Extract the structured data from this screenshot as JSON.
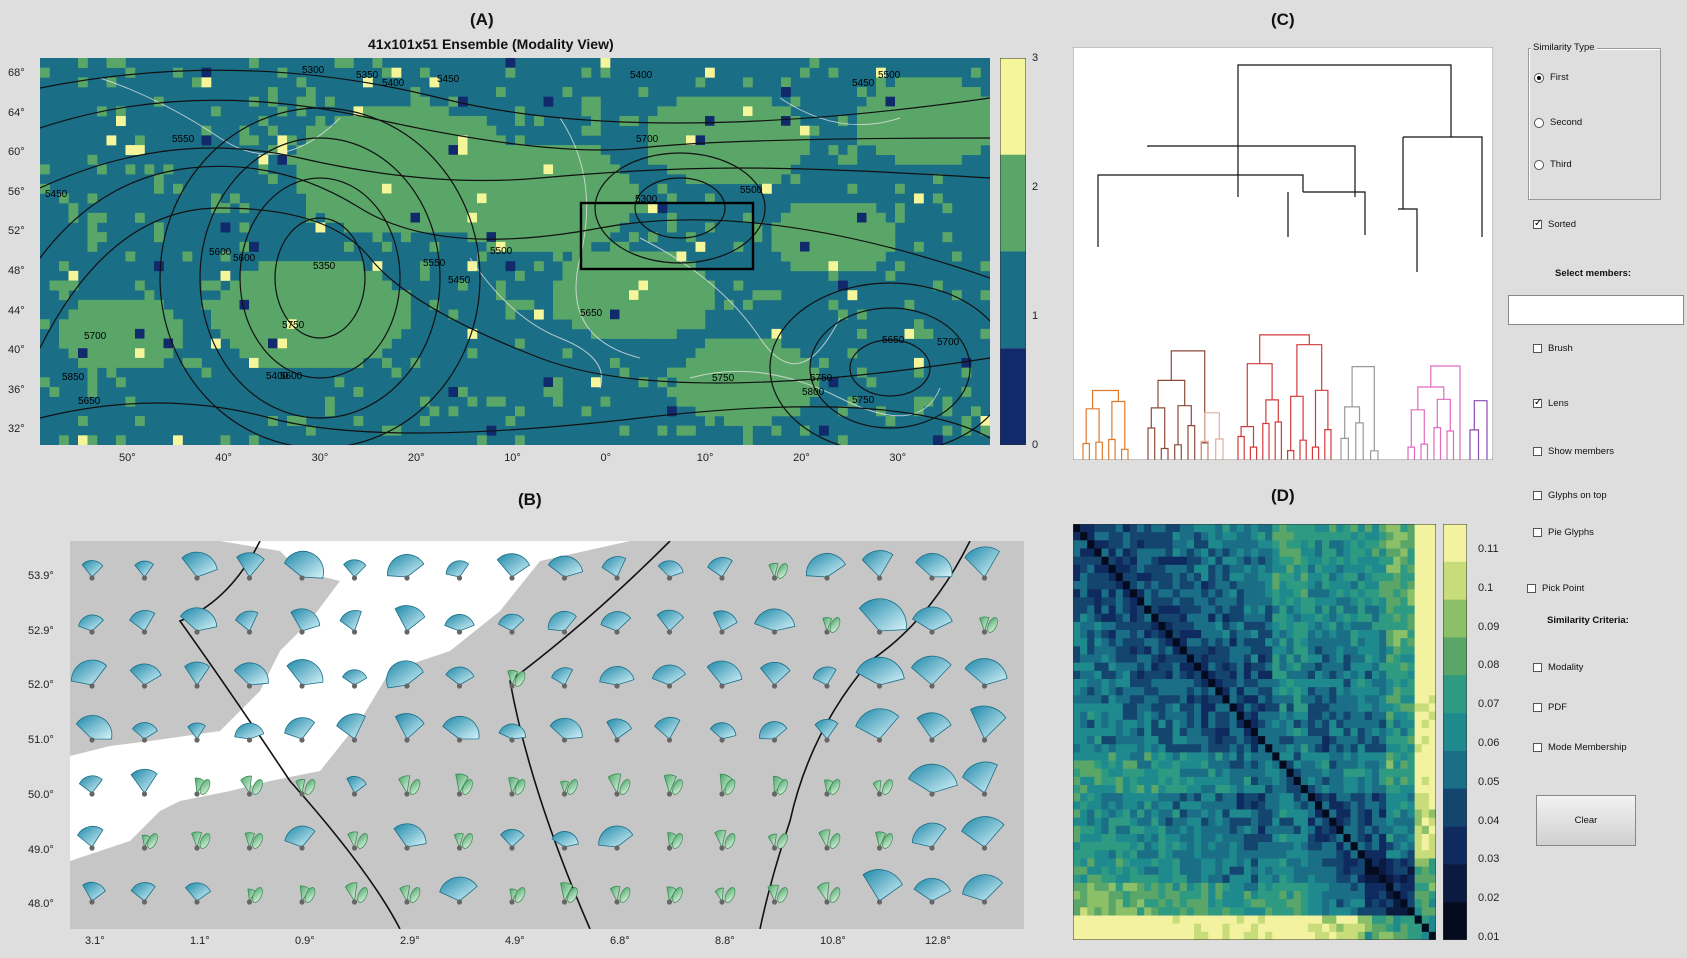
{
  "panels": {
    "a_label": "(A)",
    "b_label": "(B)",
    "c_label": "(C)",
    "d_label": "(D)",
    "a_title": "41x101x51 Ensemble (Modality View)"
  },
  "map_a": {
    "lat_ticks": [
      "68°",
      "64°",
      "60°",
      "56°",
      "52°",
      "48°",
      "44°",
      "40°",
      "36°",
      "32°"
    ],
    "lon_ticks": [
      "50°",
      "40°",
      "30°",
      "20°",
      "10°",
      "0°",
      "10°",
      "20°",
      "30°"
    ],
    "colorbar_ticks": [
      "3",
      "2",
      "1",
      "0"
    ],
    "modality_colors": [
      "#112a6b",
      "#1a6e86",
      "#5aa668",
      "#f5f59a"
    ],
    "contour_labels": [
      "5300",
      "5350",
      "5400",
      "5450",
      "5550",
      "5450",
      "5400",
      "5450",
      "5500",
      "5600",
      "5550",
      "5350",
      "5600",
      "5750",
      "5500",
      "5650",
      "5700",
      "5300",
      "5500",
      "5450",
      "5400",
      "5750",
      "5800",
      "5650",
      "5700",
      "5750",
      "5850",
      "5650",
      "5700",
      "5600",
      "5750"
    ]
  },
  "map_b": {
    "lat_ticks": [
      "53.9°",
      "52.9°",
      "52.0°",
      "51.0°",
      "50.0°",
      "49.0°",
      "48.0°"
    ],
    "lon_ticks": [
      "3.1°",
      "1.1°",
      "0.9°",
      "2.9°",
      "4.9°",
      "6.8°",
      "8.8°",
      "10.8°",
      "12.8°"
    ]
  },
  "matrix_d": {
    "colorbar_ticks": [
      "0.11",
      "0.1",
      "0.09",
      "0.08",
      "0.07",
      "0.06",
      "0.05",
      "0.04",
      "0.03",
      "0.02",
      "0.01"
    ]
  },
  "controls": {
    "similarity_type_title": "Similarity Type",
    "radio_first": "First",
    "radio_second": "Second",
    "radio_third": "Third",
    "sorted": "Sorted",
    "select_members": "Select members:",
    "select_members_value": "",
    "brush": "Brush",
    "lens": "Lens",
    "show_members": "Show members",
    "glyphs_on_top": "Glyphs on top",
    "pie_glyphs": "Pie Glyphs",
    "pick_point": "Pick Point",
    "similarity_criteria": "Similarity Criteria:",
    "modality": "Modality",
    "pdf": "PDF",
    "mode_membership": "Mode Membership",
    "clear": "Clear"
  }
}
